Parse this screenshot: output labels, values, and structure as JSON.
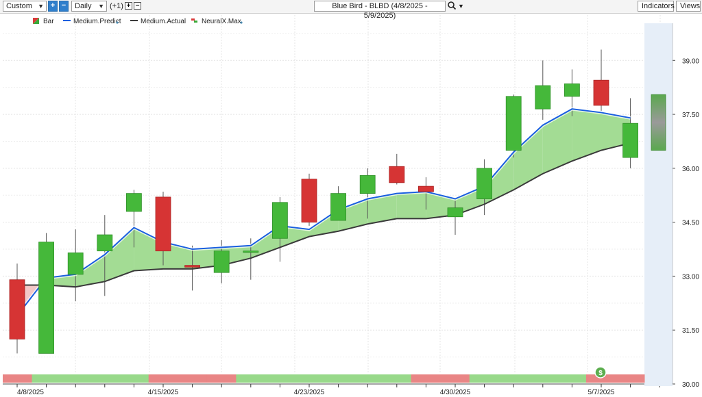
{
  "toolbar": {
    "range_select": "Custom",
    "period_select": "Daily",
    "offset_label": "(+1)",
    "title": "Blue Bird - BLBD (4/8/2025 - 5/9/2025)",
    "indicators_label": "Indicators",
    "views_label": "Views"
  },
  "icons": {
    "zoom_in": "plus-icon",
    "zoom_out": "minus-icon",
    "search": "magnifier-icon",
    "dropdown": "caret-down-icon",
    "signal": "dollar-circle-icon"
  },
  "chart_data": {
    "type": "candlestick",
    "title": "Blue Bird - BLBD (4/8/2025 - 5/9/2025)",
    "legend": [
      {
        "name": "Bar",
        "color": "#d93a3a"
      },
      {
        "name": "Medium.Predict",
        "color": "#1a5fe0"
      },
      {
        "name": "Medium.Actual",
        "color": "#3a3a3a"
      },
      {
        "name": "NeuralX.Max",
        "color": "#d93a3a"
      }
    ],
    "x_tick_labels": [
      "4/8/2025",
      "4/15/2025",
      "4/23/2025",
      "4/30/2025",
      "5/7/2025"
    ],
    "y_ticks": [
      "30.00",
      "31.50",
      "33.00",
      "34.50",
      "36.00",
      "37.50",
      "39.00"
    ],
    "ylim": [
      30.0,
      40.3
    ],
    "grid": true,
    "candles": [
      {
        "open": 32.9,
        "high": 33.35,
        "low": 30.85,
        "close": 31.25
      },
      {
        "open": 30.85,
        "high": 34.2,
        "low": 30.85,
        "close": 33.95
      },
      {
        "open": 33.05,
        "high": 34.3,
        "low": 32.3,
        "close": 33.65
      },
      {
        "open": 33.7,
        "high": 34.7,
        "low": 32.45,
        "close": 34.15
      },
      {
        "open": 34.8,
        "high": 35.4,
        "low": 33.8,
        "close": 35.3
      },
      {
        "open": 35.2,
        "high": 35.35,
        "low": 33.3,
        "close": 33.7
      },
      {
        "open": 33.3,
        "high": 33.85,
        "low": 32.6,
        "close": 33.25
      },
      {
        "open": 33.1,
        "high": 34.0,
        "low": 32.8,
        "close": 33.7
      },
      {
        "open": 33.7,
        "high": 34.05,
        "low": 32.9,
        "close": 33.7
      },
      {
        "open": 34.05,
        "high": 35.2,
        "low": 33.4,
        "close": 35.05
      },
      {
        "open": 35.7,
        "high": 35.85,
        "low": 34.4,
        "close": 34.5
      },
      {
        "open": 34.55,
        "high": 35.5,
        "low": 34.55,
        "close": 35.3
      },
      {
        "open": 35.3,
        "high": 36.0,
        "low": 34.6,
        "close": 35.8
      },
      {
        "open": 36.05,
        "high": 36.4,
        "low": 35.55,
        "close": 35.6
      },
      {
        "open": 35.5,
        "high": 35.75,
        "low": 34.85,
        "close": 35.35
      },
      {
        "open": 34.65,
        "high": 35.1,
        "low": 34.15,
        "close": 34.9
      },
      {
        "open": 35.15,
        "high": 36.25,
        "low": 34.7,
        "close": 36.0
      },
      {
        "open": 36.5,
        "high": 38.05,
        "low": 36.3,
        "close": 38.0
      },
      {
        "open": 37.65,
        "high": 39.0,
        "low": 37.35,
        "close": 38.3
      },
      {
        "open": 38.0,
        "high": 38.75,
        "low": 37.45,
        "close": 38.35
      },
      {
        "open": 38.45,
        "high": 39.3,
        "low": 37.6,
        "close": 37.75
      },
      {
        "open": 36.3,
        "high": 37.95,
        "low": 36.0,
        "close": 37.25
      }
    ],
    "series": [
      {
        "name": "Medium.Predict",
        "values": [
          31.9,
          32.95,
          33.05,
          33.6,
          34.35,
          33.95,
          33.75,
          33.8,
          33.85,
          34.4,
          34.3,
          34.85,
          35.15,
          35.3,
          35.35,
          35.15,
          35.5,
          36.45,
          37.2,
          37.65,
          37.55,
          37.4
        ]
      },
      {
        "name": "Medium.Actual",
        "values": [
          32.75,
          32.75,
          32.7,
          32.85,
          33.15,
          33.2,
          33.2,
          33.3,
          33.5,
          33.8,
          34.1,
          34.25,
          34.45,
          34.6,
          34.6,
          34.7,
          35.0,
          35.4,
          35.85,
          36.2,
          36.5,
          36.7
        ]
      }
    ],
    "forecast": {
      "high": 38.05,
      "low": 36.5
    },
    "signal_bar": [
      "red",
      "green",
      "green",
      "green",
      "green",
      "red",
      "red",
      "red",
      "green",
      "green",
      "green",
      "green",
      "green",
      "green",
      "red",
      "red",
      "green",
      "green",
      "green",
      "green",
      "red",
      "red"
    ]
  }
}
